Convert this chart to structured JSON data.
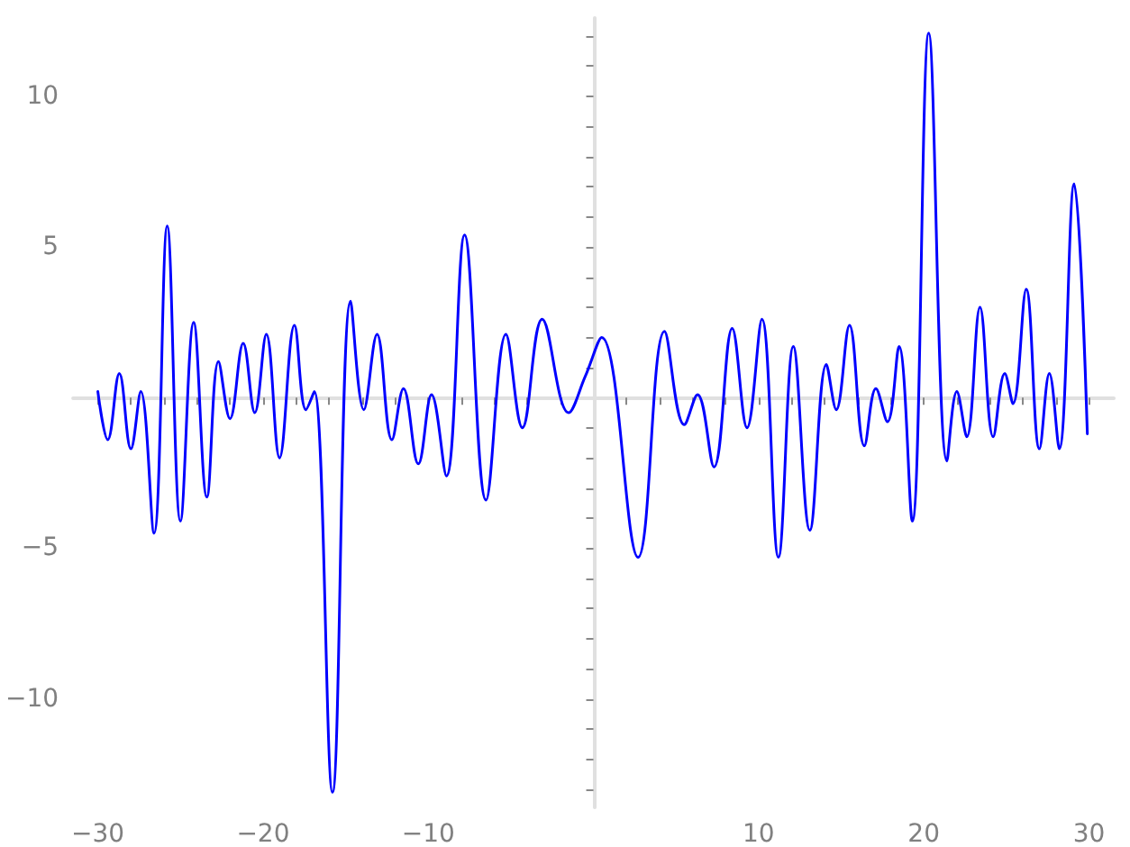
{
  "chart_data": {
    "type": "line",
    "color": "#0000ff",
    "x": [
      -30,
      -29.4,
      -28.7,
      -28.0,
      -27.4,
      -26.6,
      -25.8,
      -25.0,
      -24.2,
      -23.4,
      -22.7,
      -22.0,
      -21.2,
      -20.5,
      -19.8,
      -19.0,
      -18.1,
      -17.4,
      -16.9,
      -15.8,
      -14.7,
      -13.9,
      -13.1,
      -12.2,
      -11.5,
      -10.6,
      -9.8,
      -8.9,
      -7.8,
      -6.5,
      -5.3,
      -4.3,
      -3.1,
      -1.5,
      -0.5,
      0.5,
      2.7,
      4.3,
      5.5,
      6.3,
      7.3,
      8.4,
      9.3,
      10.2,
      11.2,
      12.1,
      13.1,
      14.1,
      14.7,
      15.5,
      16.4,
      17.1,
      17.8,
      18.5,
      19.3,
      20.3,
      21.4,
      22.0,
      22.6,
      23.4,
      24.2,
      24.9,
      25.4,
      26.2,
      27.0,
      27.6,
      28.2,
      29.1,
      29.9
    ],
    "values": [
      0.2,
      -1.4,
      0.8,
      -1.7,
      0.2,
      -4.5,
      5.7,
      -4.1,
      2.5,
      -3.3,
      1.2,
      -0.7,
      1.8,
      -0.5,
      2.1,
      -2.0,
      2.4,
      -0.4,
      0.2,
      -13.1,
      3.2,
      -0.4,
      2.1,
      -1.4,
      0.3,
      -2.2,
      0.1,
      -2.6,
      5.4,
      -3.4,
      2.1,
      -1.0,
      2.6,
      -0.5,
      0.7,
      2.0,
      -5.3,
      2.2,
      -0.9,
      0.1,
      -2.3,
      2.3,
      -1.0,
      2.6,
      -5.3,
      1.7,
      -4.4,
      1.1,
      -0.4,
      2.4,
      -1.6,
      0.3,
      -0.8,
      1.7,
      -4.1,
      12.1,
      -2.1,
      0.2,
      -1.3,
      3.0,
      -1.3,
      0.8,
      -0.2,
      3.6,
      -1.7,
      0.8,
      -1.7,
      7.1,
      -1.2
    ],
    "xlim": [
      -31.5,
      31.5
    ],
    "ylim": [
      -13.6,
      12.6
    ],
    "xticks": [
      {
        "value": -30,
        "label": "−30"
      },
      {
        "value": -28,
        "label": null
      },
      {
        "value": -26,
        "label": null
      },
      {
        "value": -24,
        "label": null
      },
      {
        "value": -22,
        "label": null
      },
      {
        "value": -20,
        "label": "−20"
      },
      {
        "value": -18,
        "label": null
      },
      {
        "value": -16,
        "label": null
      },
      {
        "value": -14,
        "label": null
      },
      {
        "value": -12,
        "label": null
      },
      {
        "value": -10,
        "label": "−10"
      },
      {
        "value": -8,
        "label": null
      },
      {
        "value": -6,
        "label": null
      },
      {
        "value": -4,
        "label": null
      },
      {
        "value": -2,
        "label": null
      },
      {
        "value": 2,
        "label": null
      },
      {
        "value": 4,
        "label": null
      },
      {
        "value": 6,
        "label": null
      },
      {
        "value": 8,
        "label": null
      },
      10,
      {
        "value": 12,
        "label": null
      },
      {
        "value": 14,
        "label": null
      },
      {
        "value": 16,
        "label": null
      },
      {
        "value": 18,
        "label": null
      },
      20,
      {
        "value": 22,
        "label": null
      },
      {
        "value": 24,
        "label": null
      },
      {
        "value": 26,
        "label": null
      },
      {
        "value": 28,
        "label": null
      },
      30
    ],
    "yticks": [
      {
        "value": -13,
        "label": null
      },
      {
        "value": -12,
        "label": null
      },
      {
        "value": -11,
        "label": null
      },
      {
        "value": -10,
        "label": "−10"
      },
      {
        "value": -9,
        "label": null
      },
      {
        "value": -8,
        "label": null
      },
      {
        "value": -7,
        "label": null
      },
      {
        "value": -6,
        "label": null
      },
      {
        "value": -5,
        "label": "−5"
      },
      {
        "value": -4,
        "label": null
      },
      {
        "value": -3,
        "label": null
      },
      {
        "value": -2,
        "label": null
      },
      {
        "value": -1,
        "label": null
      },
      {
        "value": 1,
        "label": null
      },
      {
        "value": 2,
        "label": null
      },
      {
        "value": 3,
        "label": null
      },
      {
        "value": 4,
        "label": null
      },
      5,
      {
        "value": 6,
        "label": null
      },
      {
        "value": 7,
        "label": null
      },
      {
        "value": 8,
        "label": null
      },
      {
        "value": 9,
        "label": null
      },
      10,
      {
        "value": 11,
        "label": null
      },
      {
        "value": 12,
        "label": null
      }
    ],
    "grid": false
  }
}
